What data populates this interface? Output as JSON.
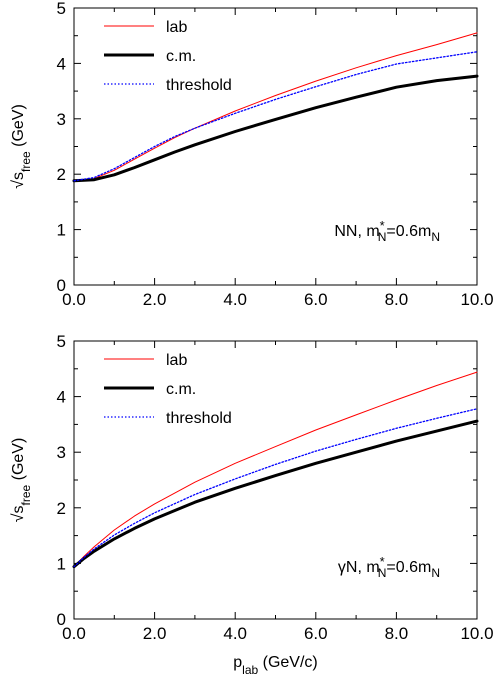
{
  "chart_data": [
    {
      "type": "line",
      "ylabel_base": "√s",
      "ylabel_sub": "free",
      "ylabel_unit": " (GeV)",
      "xlim": [
        0,
        10
      ],
      "ylim": [
        0,
        5
      ],
      "xticks": [
        0,
        2,
        4,
        6,
        8,
        10
      ],
      "xtick_labels": [
        "0.0",
        "2.0",
        "4.0",
        "6.0",
        "8.0",
        "10.0"
      ],
      "yticks": [
        0,
        1,
        2,
        3,
        4,
        5
      ],
      "ytick_labels": [
        "0",
        "1",
        "2",
        "3",
        "4",
        "5"
      ],
      "legend_position": "top-left",
      "annotation": {
        "prefix": "NN, m",
        "sub1": "N",
        "sup": "*",
        "mid": "=0.6m",
        "sub2": "N"
      },
      "series": [
        {
          "name": "lab",
          "color": "#ff0000",
          "style": "solid",
          "x": [
            0,
            0.5,
            1,
            1.5,
            2,
            2.5,
            3,
            4,
            5,
            6,
            7,
            8,
            9,
            10
          ],
          "y": [
            1.88,
            1.92,
            2.07,
            2.27,
            2.47,
            2.66,
            2.83,
            3.14,
            3.42,
            3.68,
            3.92,
            4.14,
            4.34,
            4.55
          ]
        },
        {
          "name": "c.m.",
          "color": "#000000",
          "style": "thick",
          "x": [
            0,
            0.5,
            1,
            1.5,
            2,
            2.5,
            3,
            4,
            5,
            6,
            7,
            8,
            9,
            10
          ],
          "y": [
            1.88,
            1.9,
            1.99,
            2.12,
            2.26,
            2.4,
            2.53,
            2.77,
            2.99,
            3.2,
            3.39,
            3.57,
            3.69,
            3.77
          ]
        },
        {
          "name": "threshold",
          "color": "#0000ff",
          "style": "dotted",
          "x": [
            0,
            0.5,
            1,
            1.5,
            2,
            2.5,
            3,
            4,
            5,
            6,
            7,
            8,
            9,
            10
          ],
          "y": [
            1.88,
            1.94,
            2.1,
            2.3,
            2.5,
            2.68,
            2.83,
            3.1,
            3.35,
            3.58,
            3.8,
            3.99,
            4.1,
            4.21
          ]
        }
      ]
    },
    {
      "type": "line",
      "ylabel_base": "√s",
      "ylabel_sub": "free",
      "ylabel_unit": " (GeV)",
      "xlabel_base": "p",
      "xlabel_sub": "lab",
      "xlabel_unit": " (GeV/c)",
      "xlim": [
        0,
        10
      ],
      "ylim": [
        0,
        5
      ],
      "xticks": [
        0,
        2,
        4,
        6,
        8,
        10
      ],
      "xtick_labels": [
        "0.0",
        "2.0",
        "4.0",
        "6.0",
        "8.0",
        "10.0"
      ],
      "yticks": [
        0,
        1,
        2,
        3,
        4,
        5
      ],
      "ytick_labels": [
        "0",
        "1",
        "2",
        "3",
        "4",
        "5"
      ],
      "legend_position": "top-left",
      "annotation": {
        "prefix": "γN, m",
        "sub1": "N",
        "sup": "*",
        "mid": "=0.6m",
        "sub2": "N"
      },
      "series": [
        {
          "name": "lab",
          "color": "#ff0000",
          "style": "solid",
          "x": [
            0,
            0.25,
            0.5,
            1,
            1.5,
            2,
            3,
            4,
            5,
            6,
            7,
            8,
            9,
            10
          ],
          "y": [
            0.94,
            1.13,
            1.3,
            1.6,
            1.85,
            2.07,
            2.46,
            2.8,
            3.1,
            3.4,
            3.67,
            3.94,
            4.2,
            4.44
          ]
        },
        {
          "name": "c.m.",
          "color": "#000000",
          "style": "thick",
          "x": [
            0,
            0.25,
            0.5,
            1,
            1.5,
            2,
            3,
            4,
            5,
            6,
            7,
            8,
            9,
            10
          ],
          "y": [
            0.94,
            1.09,
            1.22,
            1.44,
            1.63,
            1.8,
            2.1,
            2.35,
            2.58,
            2.8,
            3.0,
            3.2,
            3.38,
            3.56
          ]
        },
        {
          "name": "threshold",
          "color": "#0000ff",
          "style": "dotted",
          "x": [
            0,
            0.25,
            0.5,
            1,
            1.5,
            2,
            3,
            4,
            5,
            6,
            7,
            8,
            9,
            10
          ],
          "y": [
            0.94,
            1.11,
            1.26,
            1.51,
            1.72,
            1.91,
            2.24,
            2.52,
            2.78,
            3.02,
            3.23,
            3.43,
            3.61,
            3.78
          ]
        }
      ]
    }
  ]
}
